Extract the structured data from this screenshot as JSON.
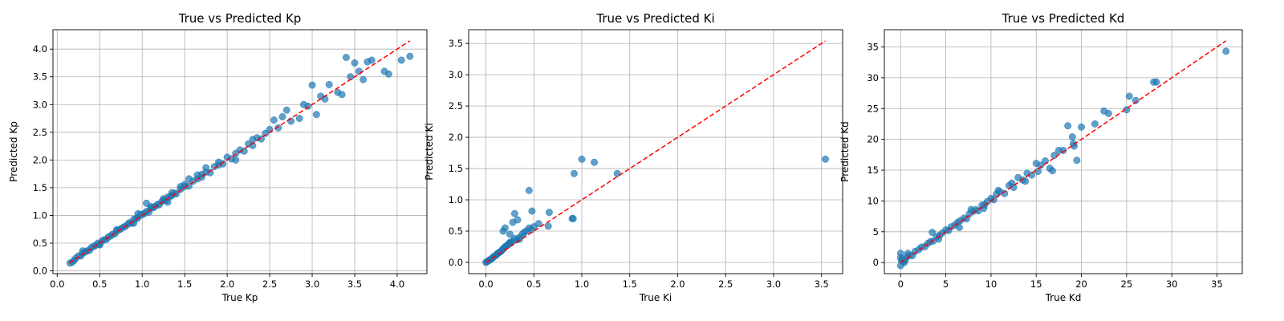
{
  "chart_data": [
    {
      "type": "scatter",
      "title": "True vs Predicted Kp",
      "xlabel": "True Kp",
      "ylabel": "Predicted Kp",
      "xlim": [
        -0.05,
        4.35
      ],
      "ylim": [
        -0.05,
        4.35
      ],
      "xticks": [
        0.0,
        0.5,
        1.0,
        1.5,
        2.0,
        2.5,
        3.0,
        3.5,
        4.0
      ],
      "xtick_labels": [
        "0.0",
        "0.5",
        "1.0",
        "1.5",
        "2.0",
        "2.5",
        "3.0",
        "3.5",
        "4.0"
      ],
      "yticks": [
        0.0,
        0.5,
        1.0,
        1.5,
        2.0,
        2.5,
        3.0,
        3.5,
        4.0
      ],
      "ytick_labels": [
        "0.0",
        "0.5",
        "1.0",
        "1.5",
        "2.0",
        "2.5",
        "3.0",
        "3.5",
        "4.0"
      ],
      "grid": true,
      "reference_line": {
        "from": [
          0.14,
          0.14
        ],
        "to": [
          4.15,
          4.15
        ],
        "color": "#ff0000",
        "style": "dashed"
      },
      "point_color": "#1f77b4",
      "x": [
        0.15,
        0.18,
        0.2,
        0.22,
        0.25,
        0.28,
        0.3,
        0.33,
        0.35,
        0.38,
        0.4,
        0.43,
        0.45,
        0.48,
        0.5,
        0.53,
        0.55,
        0.58,
        0.6,
        0.63,
        0.65,
        0.68,
        0.7,
        0.73,
        0.75,
        0.78,
        0.8,
        0.83,
        0.85,
        0.88,
        0.9,
        0.93,
        0.95,
        0.98,
        1.0,
        1.03,
        1.05,
        1.08,
        1.1,
        1.13,
        1.15,
        1.18,
        1.2,
        1.23,
        1.25,
        1.28,
        1.3,
        1.33,
        1.35,
        1.38,
        1.4,
        1.45,
        1.5,
        1.55,
        1.6,
        1.65,
        1.7,
        1.75,
        1.8,
        1.85,
        1.9,
        1.95,
        2.0,
        2.05,
        2.1,
        2.15,
        2.2,
        2.25,
        2.3,
        2.35,
        2.4,
        2.45,
        2.5,
        2.6,
        2.7,
        2.75,
        2.85,
        2.9,
        3.0,
        3.05,
        3.1,
        3.15,
        3.2,
        3.3,
        3.4,
        3.45,
        3.5,
        3.55,
        3.6,
        3.65,
        3.7,
        3.85,
        3.9,
        4.05,
        4.15,
        0.3,
        0.5,
        0.7,
        0.9,
        1.1,
        1.3,
        1.5,
        1.7,
        1.9,
        2.1,
        2.3,
        0.95,
        1.05,
        1.25,
        1.35,
        1.45,
        1.55,
        1.65,
        1.75,
        2.95,
        3.35,
        2.65,
        2.55
      ],
      "y": [
        0.14,
        0.16,
        0.19,
        0.23,
        0.27,
        0.27,
        0.32,
        0.34,
        0.36,
        0.37,
        0.42,
        0.44,
        0.46,
        0.5,
        0.48,
        0.54,
        0.56,
        0.57,
        0.61,
        0.63,
        0.66,
        0.67,
        0.72,
        0.74,
        0.76,
        0.79,
        0.8,
        0.84,
        0.87,
        0.86,
        0.93,
        0.94,
        0.96,
        1.02,
        1.01,
        1.04,
        1.07,
        1.06,
        1.13,
        1.14,
        1.16,
        1.2,
        1.19,
        1.25,
        1.27,
        1.27,
        1.33,
        1.34,
        1.36,
        1.4,
        1.39,
        1.47,
        1.52,
        1.53,
        1.62,
        1.66,
        1.69,
        1.78,
        1.77,
        1.88,
        1.91,
        1.93,
        2.05,
        2.02,
        2.12,
        2.18,
        2.16,
        2.29,
        2.26,
        2.4,
        2.38,
        2.48,
        2.55,
        2.58,
        2.9,
        2.7,
        2.75,
        3.0,
        3.35,
        2.82,
        3.15,
        3.1,
        3.36,
        3.22,
        3.85,
        3.5,
        3.75,
        3.6,
        3.45,
        3.77,
        3.8,
        3.6,
        3.55,
        3.8,
        3.87,
        0.36,
        0.47,
        0.74,
        0.86,
        1.16,
        1.24,
        1.56,
        1.74,
        1.96,
        2.0,
        2.37,
        1.03,
        1.22,
        1.3,
        1.41,
        1.52,
        1.66,
        1.73,
        1.86,
        2.97,
        3.18,
        2.78,
        2.72
      ]
    },
    {
      "type": "scatter",
      "title": "True vs Predicted Ki",
      "xlabel": "True Ki",
      "ylabel": "Predicted Ki",
      "xlim": [
        -0.18,
        3.72
      ],
      "ylim": [
        -0.18,
        3.72
      ],
      "xticks": [
        0.0,
        0.5,
        1.0,
        1.5,
        2.0,
        2.5,
        3.0,
        3.5
      ],
      "xtick_labels": [
        "0.0",
        "0.5",
        "1.0",
        "1.5",
        "2.0",
        "2.5",
        "3.0",
        "3.5"
      ],
      "yticks": [
        0.0,
        0.5,
        1.0,
        1.5,
        2.0,
        2.5,
        3.0,
        3.5
      ],
      "ytick_labels": [
        "0.0",
        "0.5",
        "1.0",
        "1.5",
        "2.0",
        "2.5",
        "3.0",
        "3.5"
      ],
      "grid": true,
      "reference_line": {
        "from": [
          0.0,
          0.0
        ],
        "to": [
          3.54,
          3.54
        ],
        "color": "#ff0000",
        "style": "dashed"
      },
      "point_color": "#1f77b4",
      "x": [
        0.0,
        0.01,
        0.02,
        0.03,
        0.04,
        0.05,
        0.06,
        0.07,
        0.08,
        0.09,
        0.1,
        0.11,
        0.12,
        0.13,
        0.14,
        0.15,
        0.16,
        0.17,
        0.18,
        0.19,
        0.2,
        0.21,
        0.22,
        0.23,
        0.24,
        0.25,
        0.26,
        0.28,
        0.3,
        0.32,
        0.35,
        0.38,
        0.4,
        0.42,
        0.45,
        0.47,
        0.5,
        0.55,
        0.65,
        0.66,
        0.9,
        0.91,
        0.92,
        1.0,
        1.13,
        1.37,
        3.54,
        0.18,
        0.2,
        0.25,
        0.28,
        0.3,
        0.33,
        0.45,
        0.48,
        0.35
      ],
      "y": [
        0.0,
        0.01,
        0.02,
        0.03,
        0.04,
        0.05,
        0.06,
        0.07,
        0.09,
        0.1,
        0.11,
        0.12,
        0.14,
        0.15,
        0.16,
        0.17,
        0.18,
        0.2,
        0.22,
        0.23,
        0.25,
        0.26,
        0.27,
        0.28,
        0.3,
        0.32,
        0.31,
        0.34,
        0.38,
        0.36,
        0.4,
        0.45,
        0.48,
        0.5,
        0.55,
        0.52,
        0.57,
        0.62,
        0.58,
        0.8,
        0.7,
        0.7,
        1.42,
        1.65,
        1.6,
        1.42,
        1.65,
        0.5,
        0.55,
        0.45,
        0.64,
        0.78,
        0.68,
        1.15,
        0.82,
        0.37
      ]
    },
    {
      "type": "scatter",
      "title": "True vs Predicted Kd",
      "xlabel": "True Kd",
      "ylabel": "Predicted Kd",
      "xlim": [
        -1.8,
        37.8
      ],
      "ylim": [
        -1.8,
        37.8
      ],
      "xticks": [
        0,
        5,
        10,
        15,
        20,
        25,
        30,
        35
      ],
      "xtick_labels": [
        "0",
        "5",
        "10",
        "15",
        "20",
        "25",
        "30",
        "35"
      ],
      "yticks": [
        0,
        5,
        10,
        15,
        20,
        25,
        30,
        35
      ],
      "ytick_labels": [
        "0",
        "5",
        "10",
        "15",
        "20",
        "25",
        "30",
        "35"
      ],
      "grid": true,
      "reference_line": {
        "from": [
          0.0,
          0.0
        ],
        "to": [
          36.0,
          36.0
        ],
        "color": "#ff0000",
        "style": "dashed"
      },
      "point_color": "#1f77b4",
      "x": [
        0,
        0,
        0,
        0.1,
        0.2,
        0.3,
        0.5,
        0.7,
        1,
        1.3,
        1.6,
        2,
        2.3,
        2.7,
        3,
        3.3,
        3.6,
        4,
        4.3,
        4.6,
        5,
        5.3,
        5.6,
        6,
        6.3,
        6.6,
        7,
        7.3,
        7.6,
        8,
        8.3,
        8.6,
        9,
        9.3,
        9.6,
        10,
        10.3,
        10.6,
        11,
        11.5,
        12,
        12.5,
        13,
        13.5,
        14,
        14.5,
        15,
        15.5,
        16,
        16.5,
        17,
        17.5,
        18,
        18.5,
        19,
        19.2,
        19.5,
        20,
        21.5,
        22.5,
        23,
        25,
        25.3,
        26,
        28,
        28.3,
        36,
        0.4,
        0.8,
        3.5,
        4.2,
        6.5,
        7.8,
        9.2,
        10.8,
        12.3,
        13.8,
        15.2,
        16.8,
        19.1
      ],
      "y": [
        1.5,
        0.8,
        -0.5,
        0.3,
        0.6,
        0.2,
        0.4,
        0.9,
        1.2,
        1.1,
        1.8,
        2.1,
        2.5,
        2.6,
        3.1,
        3.4,
        3.5,
        4.2,
        4.4,
        4.8,
        5.3,
        5.2,
        5.8,
        6.1,
        6.5,
        6.8,
        7.2,
        7.1,
        7.9,
        8.3,
        8.6,
        8.4,
        9.3,
        9.4,
        9.9,
        10.4,
        10.2,
        11.1,
        11.5,
        11.2,
        12.5,
        12.2,
        13.8,
        13.4,
        14.5,
        14.2,
        16.1,
        15.8,
        16.5,
        15.3,
        17.4,
        18.2,
        18.2,
        22.2,
        20.4,
        18.9,
        16.6,
        22.0,
        22.5,
        24.6,
        24.2,
        24.8,
        27.0,
        26.3,
        29.3,
        29.3,
        34.3,
        0.0,
        1.5,
        4.9,
        3.8,
        5.7,
        8.6,
        8.8,
        11.7,
        12.9,
        13.2,
        14.8,
        14.9,
        19.3
      ]
    }
  ]
}
